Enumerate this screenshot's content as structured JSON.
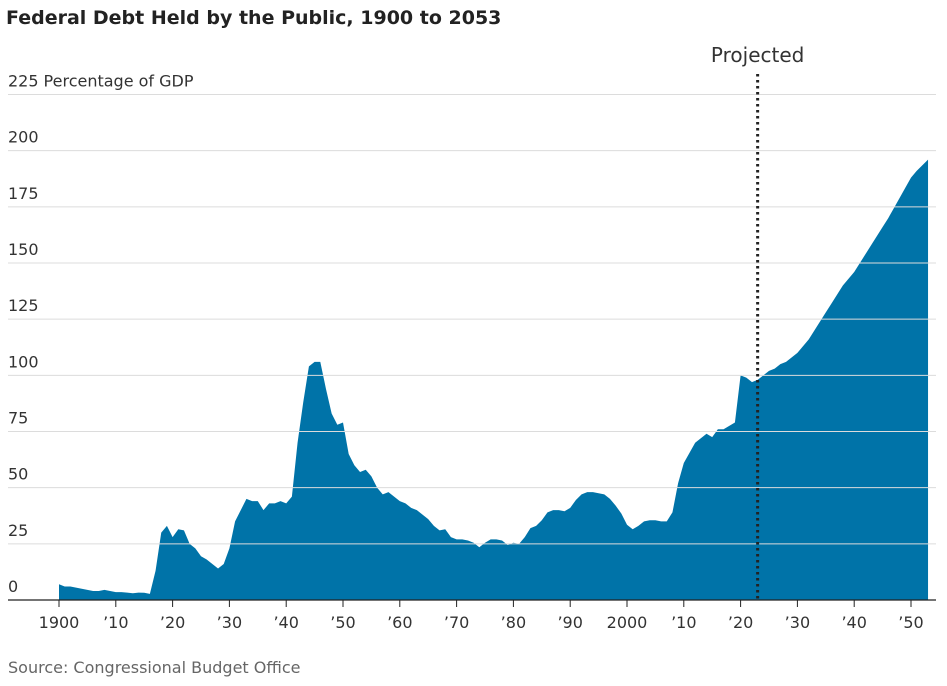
{
  "chart_data": {
    "type": "area",
    "title": "Federal Debt Held by the Public, 1900 to 2053",
    "ylabel": "Percentage of GDP",
    "source": "Source: Congressional Budget Office",
    "annotation": {
      "text": "Projected",
      "x": 2023
    },
    "color": "#0073a8",
    "grid": true,
    "x": [
      1900,
      1901,
      1902,
      1903,
      1904,
      1905,
      1906,
      1907,
      1908,
      1909,
      1910,
      1911,
      1912,
      1913,
      1914,
      1915,
      1916,
      1917,
      1918,
      1919,
      1920,
      1921,
      1922,
      1923,
      1924,
      1925,
      1926,
      1927,
      1928,
      1929,
      1930,
      1931,
      1932,
      1933,
      1934,
      1935,
      1936,
      1937,
      1938,
      1939,
      1940,
      1941,
      1942,
      1943,
      1944,
      1945,
      1946,
      1947,
      1948,
      1949,
      1950,
      1951,
      1952,
      1953,
      1954,
      1955,
      1956,
      1957,
      1958,
      1959,
      1960,
      1961,
      1962,
      1963,
      1964,
      1965,
      1966,
      1967,
      1968,
      1969,
      1970,
      1971,
      1972,
      1973,
      1974,
      1975,
      1976,
      1977,
      1978,
      1979,
      1980,
      1981,
      1982,
      1983,
      1984,
      1985,
      1986,
      1987,
      1988,
      1989,
      1990,
      1991,
      1992,
      1993,
      1994,
      1995,
      1996,
      1997,
      1998,
      1999,
      2000,
      2001,
      2002,
      2003,
      2004,
      2005,
      2006,
      2007,
      2008,
      2009,
      2010,
      2011,
      2012,
      2013,
      2014,
      2015,
      2016,
      2017,
      2018,
      2019,
      2020,
      2021,
      2022,
      2023,
      2024,
      2025,
      2026,
      2027,
      2028,
      2029,
      2030,
      2031,
      2032,
      2033,
      2034,
      2035,
      2036,
      2037,
      2038,
      2039,
      2040,
      2041,
      2042,
      2043,
      2044,
      2045,
      2046,
      2047,
      2048,
      2049,
      2050,
      2051,
      2052,
      2053
    ],
    "values": [
      7,
      6,
      6,
      5.5,
      5,
      4.5,
      4,
      4,
      4.5,
      4,
      3.5,
      3.5,
      3.3,
      3,
      3.3,
      3.2,
      2.7,
      13,
      30,
      33,
      28,
      31.5,
      31,
      25,
      23,
      19.5,
      18,
      16,
      14,
      16,
      23,
      35,
      40,
      45,
      44,
      44,
      40,
      43,
      43,
      44,
      43,
      46,
      70,
      88,
      104,
      106,
      106,
      94,
      83,
      78,
      79,
      65,
      60,
      57,
      58,
      55,
      50,
      47,
      48,
      46,
      44,
      43,
      41,
      40,
      38,
      36,
      33,
      31,
      31.5,
      28,
      27,
      27,
      26.5,
      25.5,
      23.5,
      25.5,
      27,
      27,
      26.5,
      24.5,
      25.5,
      25,
      28,
      32,
      33,
      35.5,
      39,
      40,
      40,
      39.5,
      41,
      44.5,
      47,
      48,
      48,
      47.5,
      47,
      45,
      42,
      38.5,
      33.5,
      31.5,
      33,
      35,
      35.5,
      35.5,
      35,
      35,
      39,
      52,
      61,
      65.5,
      70,
      72,
      74,
      72.5,
      76,
      76,
      77.5,
      79,
      100,
      99,
      97,
      98,
      100,
      102,
      103,
      105,
      106,
      108,
      110,
      113,
      116,
      120,
      124,
      128,
      132,
      136,
      140,
      143,
      146,
      150,
      154,
      158,
      162,
      166,
      170,
      174.5,
      179,
      183.5,
      188,
      191,
      193.5,
      196
    ],
    "xlim": [
      1897,
      2054
    ],
    "ylim": [
      0,
      225
    ],
    "yticks": [
      0,
      25,
      50,
      75,
      100,
      125,
      150,
      175,
      200,
      225
    ],
    "xticks": [
      1900,
      {
        "value": 1910,
        "label": "’10"
      },
      {
        "value": 1920,
        "label": "’20"
      },
      {
        "value": 1930,
        "label": "’30"
      },
      {
        "value": 1940,
        "label": "’40"
      },
      {
        "value": 1950,
        "label": "’50"
      },
      {
        "value": 1960,
        "label": "’60"
      },
      {
        "value": 1970,
        "label": "’70"
      },
      {
        "value": 1980,
        "label": "’80"
      },
      {
        "value": 1990,
        "label": "’90"
      },
      2000,
      {
        "value": 2010,
        "label": "’10"
      },
      {
        "value": 2020,
        "label": "’20"
      },
      {
        "value": 2030,
        "label": "’30"
      },
      {
        "value": 2040,
        "label": "’40"
      },
      {
        "value": 2050,
        "label": "’50"
      }
    ]
  }
}
